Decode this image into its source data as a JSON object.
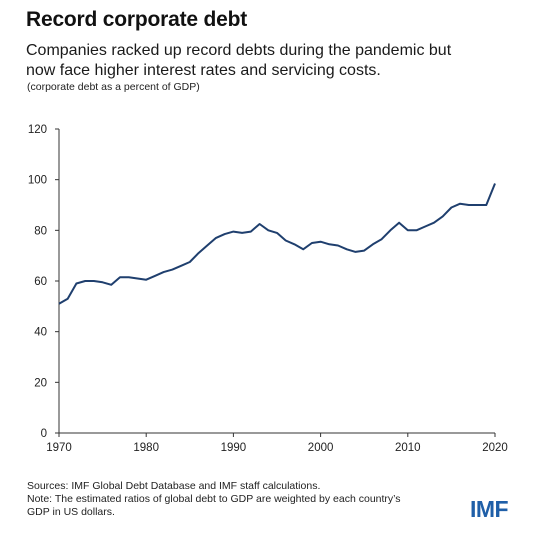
{
  "header": {
    "title": "Record corporate debt",
    "subtitle_line1": "Companies racked up record debts during the pandemic but",
    "subtitle_line2": "now face higher interest rates and servicing costs.",
    "unit": "(corporate debt as a percent of GDP)"
  },
  "footer": {
    "sources": "Sources: IMF Global Debt Database and IMF staff calculations.",
    "note_line1": "Note: The estimated ratios of global debt to GDP are weighted by each country’s",
    "note_line2": "GDP in US dollars.",
    "logo": "IMF"
  },
  "colors": {
    "line": "#1f3f6e",
    "axis": "#333333",
    "logo": "#1f5fa8"
  },
  "chart_data": {
    "type": "line",
    "title": "Record corporate debt",
    "xlabel": "",
    "ylabel": "",
    "xlim": [
      1970,
      2020
    ],
    "ylim": [
      0,
      120
    ],
    "xticks": [
      1970,
      1980,
      1990,
      2000,
      2010,
      2020
    ],
    "yticks": [
      0,
      20,
      40,
      60,
      80,
      100,
      120
    ],
    "grid": false,
    "series": [
      {
        "x": [
          1970,
          1971,
          1972,
          1973,
          1974,
          1975,
          1976,
          1977,
          1978,
          1979,
          1980,
          1981,
          1982,
          1983,
          1984,
          1985,
          1986,
          1987,
          1988,
          1989,
          1990,
          1991,
          1992,
          1993,
          1994,
          1995,
          1996,
          1997,
          1998,
          1999,
          2000,
          2001,
          2002,
          2003,
          2004,
          2005,
          2006,
          2007,
          2008,
          2009,
          2010,
          2011,
          2012,
          2013,
          2014,
          2015,
          2016,
          2017,
          2018,
          2019,
          2020
        ],
        "values": [
          51,
          53,
          59,
          60,
          60,
          59.5,
          58.5,
          61.5,
          61.5,
          61,
          60.5,
          62,
          63.5,
          64.5,
          66,
          67.5,
          71,
          74,
          77,
          78.5,
          79.5,
          79,
          79.5,
          82.5,
          80,
          79,
          76,
          74.5,
          72.5,
          75,
          75.5,
          74.5,
          74,
          72.5,
          71.5,
          72,
          74.5,
          76.5,
          80,
          83,
          80,
          80,
          81.5,
          83,
          85.5,
          89,
          90.5,
          90,
          90,
          90,
          98.5
        ]
      }
    ]
  }
}
